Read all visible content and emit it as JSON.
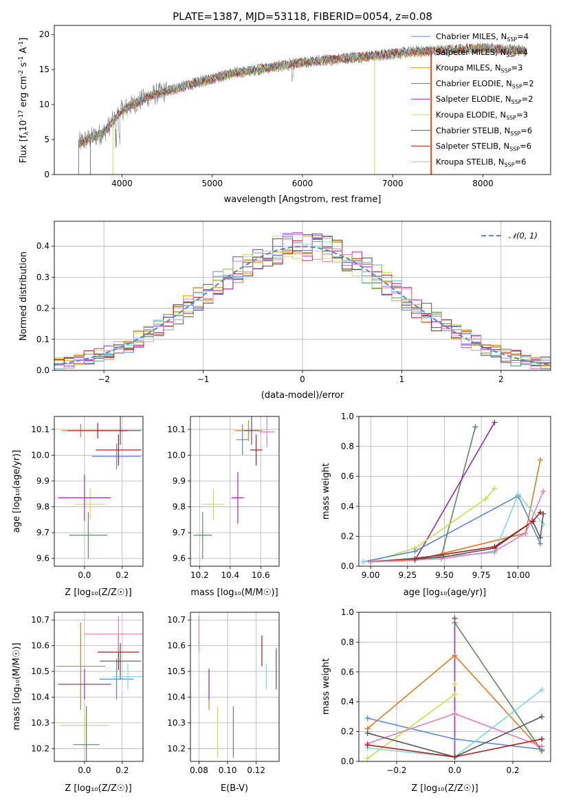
{
  "colors": {
    "chabrier_miles": "#5b86d8",
    "salpeter_miles": "#e07a22",
    "kroupa_miles": "#d4a020",
    "chabrier_elodie": "#5a8a5a",
    "salpeter_elodie": "#9a2ab0",
    "kroupa_elodie": "#c8e048",
    "chabrier_stelib": "#555555",
    "salpeter_stelib": "#b01818",
    "kroupa_stelib": "#7ed8e0",
    "pink": "#e87bb4",
    "normal": "#5b8ad8",
    "grid": "#b0b0b0",
    "spectrum_gray": "#808080"
  },
  "chart_data": [
    {
      "id": "spectrum",
      "type": "line",
      "title": "PLATE=1387, MJD=53118, FIBERID=0054, z=0.08",
      "xlabel": "wavelength [Angstrom, rest frame]",
      "ylabel_main": "Flux [f",
      "ylabel_sub": "λ",
      "ylabel_mid": "10",
      "ylabel_exp": "-17",
      "ylabel_rest": " erg cm",
      "ylabel_exp2": "-2",
      "ylabel_rest2": " s",
      "ylabel_exp3": "-1",
      "ylabel_rest3": " A",
      "ylabel_exp4": "-1",
      "ylabel_end": "]",
      "xlim": [
        3250,
        8750
      ],
      "ylim": [
        0,
        21.3
      ],
      "xticks": [
        "4000",
        "5000",
        "6000",
        "7000",
        "8000"
      ],
      "yticks": [
        "0",
        "5",
        "10",
        "15",
        "20"
      ],
      "xtick_values": [
        4000,
        5000,
        6000,
        7000,
        8000
      ],
      "ytick_values": [
        0,
        5,
        10,
        15,
        20
      ],
      "observed_wavelength_range": [
        3520,
        8480
      ],
      "flux_anchor_wavelengths": [
        3520,
        3800,
        4000,
        4300,
        4800,
        5200,
        5800,
        6200,
        6800,
        7200,
        7600,
        8000,
        8480
      ],
      "flux_anchor_values": [
        4.5,
        6.0,
        9.2,
        11.2,
        13.0,
        14.4,
        15.6,
        16.3,
        17.0,
        17.5,
        17.8,
        18.0,
        17.7
      ],
      "legend": [
        {
          "prefix": "Chabrier MILES, N",
          "sub": "SSP",
          "suffix": "=4",
          "color_key": "chabrier_miles"
        },
        {
          "prefix": "Salpeter MILES, N",
          "sub": "SSP",
          "suffix": "=4",
          "color_key": "salpeter_miles"
        },
        {
          "prefix": "Kroupa MILES, N",
          "sub": "SSP",
          "suffix": "=3",
          "color_key": "kroupa_miles"
        },
        {
          "prefix": "Chabrier ELODIE, N",
          "sub": "SSP",
          "suffix": "=2",
          "color_key": "chabrier_elodie"
        },
        {
          "prefix": "Salpeter ELODIE, N",
          "sub": "SSP",
          "suffix": "=2",
          "color_key": "salpeter_elodie"
        },
        {
          "prefix": "Kroupa ELODIE, N",
          "sub": "SSP",
          "suffix": "=3",
          "color_key": "kroupa_elodie"
        },
        {
          "prefix": "Chabrier STELIB, N",
          "sub": "SSP",
          "suffix": "=6",
          "color_key": "chabrier_stelib"
        },
        {
          "prefix": "Salpeter STELIB, N",
          "sub": "SSP",
          "suffix": "=6",
          "color_key": "salpeter_stelib"
        },
        {
          "prefix": "Kroupa STELIB, N",
          "sub": "SSP",
          "suffix": "=6",
          "color_key": "kroupa_stelib"
        }
      ]
    },
    {
      "id": "residuals",
      "type": "line",
      "xlabel": "(data-model)/error",
      "ylabel": "Normed distribution",
      "xlim": [
        -2.5,
        2.5
      ],
      "ylim": [
        0,
        0.48
      ],
      "xticks": [
        "−2",
        "−1",
        "0",
        "1",
        "2"
      ],
      "yticks": [
        "0.0",
        "0.1",
        "0.2",
        "0.3",
        "0.4"
      ],
      "xtick_values": [
        -2,
        -1,
        0,
        1,
        2
      ],
      "ytick_values": [
        0,
        0.1,
        0.2,
        0.3,
        0.4
      ],
      "grid": true,
      "bin_width": 0.1,
      "legend_label": "𝒩(0, 1)",
      "series_colors": [
        "chabrier_miles",
        "salpeter_miles",
        "kroupa_miles",
        "chabrier_elodie",
        "salpeter_elodie",
        "kroupa_elodie",
        "chabrier_stelib",
        "salpeter_stelib",
        "kroupa_stelib",
        "pink"
      ],
      "histogram_peak": 0.4,
      "histogram_scatter": 0.06
    },
    {
      "id": "age_vs_z",
      "type": "scatter",
      "xlabel": "Z [log₁₀(Z/Z☉)]",
      "ylabel": "age  [log₁₀(age/yr)]",
      "xlim": [
        -0.16,
        0.31
      ],
      "ylim": [
        9.57,
        10.15
      ],
      "xticks": [
        "0.0",
        "0.2"
      ],
      "yticks": [
        "9.6",
        "9.7",
        "9.8",
        "9.9",
        "10.0",
        "10.1"
      ],
      "xtick_values": [
        0.0,
        0.2
      ],
      "ytick_values": [
        9.6,
        9.7,
        9.8,
        9.9,
        10.0,
        10.1
      ],
      "points": [
        {
          "x": 0.17,
          "y": 9.995,
          "xerr": 0.13,
          "yerr": 0.05,
          "color_key": "chabrier_miles"
        },
        {
          "x": -0.02,
          "y": 10.095,
          "xerr": 0.1,
          "yerr": 0.025,
          "color_key": "salpeter_miles"
        },
        {
          "x": 0.03,
          "y": 9.81,
          "xerr": 0.08,
          "yerr": 0.06,
          "color_key": "kroupa_elodie"
        },
        {
          "x": 0.02,
          "y": 9.69,
          "xerr": 0.1,
          "yerr": 0.09,
          "color_key": "chabrier_elodie"
        },
        {
          "x": 0.0,
          "y": 9.835,
          "xerr": 0.14,
          "yerr": 0.09,
          "color_key": "salpeter_elodie"
        },
        {
          "x": 0.19,
          "y": 10.095,
          "xerr": 0.11,
          "yerr": 0.055,
          "color_key": "chabrier_stelib"
        },
        {
          "x": 0.18,
          "y": 10.02,
          "xerr": 0.12,
          "yerr": 0.06,
          "color_key": "salpeter_stelib"
        },
        {
          "x": 0.07,
          "y": 10.095,
          "xerr": 0.16,
          "yerr": 0.03,
          "color_key": "salpeter_stelib"
        }
      ]
    },
    {
      "id": "age_vs_mass",
      "type": "scatter",
      "xlabel": "mass [log₁₀(M/M☉)]",
      "xlim": [
        10.14,
        10.72
      ],
      "ylim": [
        9.57,
        10.15
      ],
      "xticks": [
        "10.2",
        "10.4",
        "10.6"
      ],
      "yticks": [
        "9.6",
        "9.7",
        "9.8",
        "9.9",
        "10.0",
        "10.1"
      ],
      "xtick_values": [
        10.2,
        10.4,
        10.6
      ],
      "ytick_values": [
        9.6,
        9.7,
        9.8,
        9.9,
        10.0,
        10.1
      ],
      "points": [
        {
          "x": 10.48,
          "y": 10.06,
          "xerr": 0.04,
          "yerr": 0.06,
          "color_key": "chabrier_miles"
        },
        {
          "x": 10.52,
          "y": 10.095,
          "xerr": 0.09,
          "yerr": 0.04,
          "color_key": "salpeter_miles"
        },
        {
          "x": 10.29,
          "y": 9.81,
          "xerr": 0.07,
          "yerr": 0.06,
          "color_key": "kroupa_elodie"
        },
        {
          "x": 10.22,
          "y": 9.69,
          "xerr": 0.06,
          "yerr": 0.09,
          "color_key": "chabrier_elodie"
        },
        {
          "x": 10.45,
          "y": 9.835,
          "xerr": 0.04,
          "yerr": 0.1,
          "color_key": "salpeter_elodie"
        },
        {
          "x": 10.54,
          "y": 10.095,
          "xerr": 0.05,
          "yerr": 0.055,
          "color_key": "chabrier_stelib"
        },
        {
          "x": 10.57,
          "y": 10.02,
          "xerr": 0.04,
          "yerr": 0.06,
          "color_key": "salpeter_stelib"
        },
        {
          "x": 10.64,
          "y": 10.09,
          "xerr": 0.05,
          "yerr": 0.06,
          "color_key": "pink"
        }
      ]
    },
    {
      "id": "weight_vs_age",
      "type": "line",
      "xlabel": "age  [log₁₀(age/yr)]",
      "ylabel": "mass weight",
      "xlim": [
        8.92,
        10.22
      ],
      "ylim": [
        0,
        1.0
      ],
      "xticks": [
        "9.00",
        "9.25",
        "9.50",
        "9.75",
        "10.00"
      ],
      "yticks": [
        "0.0",
        "0.2",
        "0.4",
        "0.6",
        "0.8",
        "1.0"
      ],
      "xtick_values": [
        9.0,
        9.25,
        9.5,
        9.75,
        10.0
      ],
      "ytick_values": [
        0,
        0.2,
        0.4,
        0.6,
        0.8,
        1.0
      ],
      "grid": true,
      "series": [
        {
          "color_key": "chabrier_elodie",
          "x": [
            9.0,
            9.48,
            9.71
          ],
          "y": [
            0.03,
            0.07,
            0.93
          ]
        },
        {
          "color_key": "salpeter_elodie",
          "x": [
            9.0,
            9.3,
            9.84
          ],
          "y": [
            0.03,
            0.04,
            0.96
          ]
        },
        {
          "color_key": "kroupa_elodie",
          "x": [
            9.0,
            9.3,
            9.78,
            9.84
          ],
          "y": [
            0.03,
            0.12,
            0.45,
            0.52
          ]
        },
        {
          "color_key": "salpeter_miles",
          "x": [
            9.0,
            9.3,
            10.05,
            10.15
          ],
          "y": [
            0.03,
            0.04,
            0.22,
            0.71
          ]
        },
        {
          "color_key": "chabrier_miles",
          "x": [
            8.95,
            9.3,
            10.0,
            10.15
          ],
          "y": [
            0.03,
            0.1,
            0.47,
            0.15
          ]
        },
        {
          "color_key": "kroupa_stelib",
          "x": [
            8.95,
            9.84,
            10.0,
            10.17
          ],
          "y": [
            0.03,
            0.09,
            0.48,
            0.28
          ]
        },
        {
          "color_key": "chabrier_stelib",
          "x": [
            9.0,
            9.48,
            9.84,
            10.1,
            10.15,
            10.17
          ],
          "y": [
            0.03,
            0.06,
            0.12,
            0.3,
            0.19,
            0.35
          ]
        },
        {
          "color_key": "salpeter_stelib",
          "x": [
            9.0,
            9.3,
            9.84,
            10.1,
            10.15
          ],
          "y": [
            0.03,
            0.05,
            0.13,
            0.3,
            0.36
          ]
        },
        {
          "color_key": "pink",
          "x": [
            9.0,
            9.48,
            9.84,
            10.05,
            10.17
          ],
          "y": [
            0.03,
            0.05,
            0.1,
            0.22,
            0.5
          ]
        }
      ]
    },
    {
      "id": "mass_vs_z",
      "type": "scatter",
      "xlabel": "Z [log₁₀(Z/Z☉)]",
      "ylabel": "mass [log₁₀(M/M☉)]",
      "xlim": [
        -0.16,
        0.31
      ],
      "ylim": [
        10.15,
        10.73
      ],
      "xticks": [
        "0.0",
        "0.2"
      ],
      "yticks": [
        "10.2",
        "10.3",
        "10.4",
        "10.5",
        "10.6",
        "10.7"
      ],
      "xtick_values": [
        0.0,
        0.2
      ],
      "ytick_values": [
        10.2,
        10.3,
        10.4,
        10.5,
        10.6,
        10.7
      ],
      "points": [
        {
          "x": 0.17,
          "y": 10.47,
          "xerr": 0.09,
          "yerr": 0.08,
          "color_key": "chabrier_miles"
        },
        {
          "x": -0.02,
          "y": 10.52,
          "xerr": 0.13,
          "yerr": 0.17,
          "color_key": "salpeter_miles"
        },
        {
          "x": 0.0,
          "y": 10.29,
          "xerr": 0.13,
          "yerr": 0.06,
          "color_key": "kroupa_elodie"
        },
        {
          "x": 0.01,
          "y": 10.215,
          "xerr": 0.07,
          "yerr": 0.15,
          "color_key": "chabrier_elodie"
        },
        {
          "x": 0.0,
          "y": 10.45,
          "xerr": 0.14,
          "yerr": 0.06,
          "color_key": "salpeter_elodie"
        },
        {
          "x": 0.19,
          "y": 10.54,
          "xerr": 0.11,
          "yerr": 0.07,
          "color_key": "chabrier_stelib"
        },
        {
          "x": 0.18,
          "y": 10.575,
          "xerr": 0.11,
          "yerr": 0.07,
          "color_key": "salpeter_stelib"
        },
        {
          "x": 0.23,
          "y": 10.48,
          "xerr": 0.08,
          "yerr": 0.05,
          "color_key": "kroupa_stelib"
        },
        {
          "x": 0.18,
          "y": 10.645,
          "xerr": 0.18,
          "yerr": 0.07,
          "color_key": "pink"
        }
      ]
    },
    {
      "id": "mass_vs_ebv",
      "type": "scatter",
      "xlabel": "E(B-V)",
      "xlim": [
        0.074,
        0.136
      ],
      "ylim": [
        10.15,
        10.73
      ],
      "xticks": [
        "0.08",
        "0.10",
        "0.12"
      ],
      "yticks": [
        "10.2",
        "10.3",
        "10.4",
        "10.5",
        "10.6",
        "10.7"
      ],
      "xtick_values": [
        0.08,
        0.1,
        0.12
      ],
      "ytick_values": [
        10.2,
        10.3,
        10.4,
        10.5,
        10.6,
        10.7
      ],
      "points": [
        {
          "x": 0.08,
          "y": 10.645,
          "xerr": 0.0,
          "yerr": 0.07,
          "color_key": "pink"
        },
        {
          "x": 0.087,
          "y": 10.43,
          "xerr": 0.0,
          "yerr": 0.08,
          "color_key": "salpeter_miles"
        },
        {
          "x": 0.087,
          "y": 10.45,
          "xerr": 0.0,
          "yerr": 0.06,
          "color_key": "salpeter_elodie"
        },
        {
          "x": 0.093,
          "y": 10.265,
          "xerr": 0.0,
          "yerr": 0.1,
          "color_key": "kroupa_elodie"
        },
        {
          "x": 0.104,
          "y": 10.265,
          "xerr": 0.0,
          "yerr": 0.1,
          "color_key": "chabrier_elodie"
        },
        {
          "x": 0.124,
          "y": 10.58,
          "xerr": 0.0,
          "yerr": 0.06,
          "color_key": "salpeter_stelib"
        },
        {
          "x": 0.127,
          "y": 10.48,
          "xerr": 0.0,
          "yerr": 0.05,
          "color_key": "kroupa_stelib"
        },
        {
          "x": 0.134,
          "y": 10.51,
          "xerr": 0.0,
          "yerr": 0.08,
          "color_key": "chabrier_stelib"
        }
      ]
    },
    {
      "id": "weight_vs_z",
      "type": "line",
      "xlabel": "Z [log₁₀(Z/Z☉)]",
      "ylabel": "mass weight",
      "xlim": [
        -0.33,
        0.33
      ],
      "ylim": [
        0,
        1.0
      ],
      "xticks": [
        "−0.2",
        "0.0",
        "0.2"
      ],
      "yticks": [
        "0.0",
        "0.2",
        "0.4",
        "0.6",
        "0.8",
        "1.0"
      ],
      "xtick_values": [
        -0.2,
        0.0,
        0.2
      ],
      "ytick_values": [
        0,
        0.2,
        0.4,
        0.6,
        0.8,
        1.0
      ],
      "grid": true,
      "series": [
        {
          "color_key": "chabrier_miles",
          "x": [
            -0.3,
            0.0,
            0.3
          ],
          "y": [
            0.29,
            0.15,
            0.08
          ]
        },
        {
          "color_key": "salpeter_miles",
          "x": [
            -0.3,
            0.0,
            0.3
          ],
          "y": [
            0.22,
            0.71,
            0.07
          ]
        },
        {
          "color_key": "kroupa_elodie",
          "x": [
            -0.3,
            0.0,
            0.0
          ],
          "y": [
            0.02,
            0.45,
            0.52
          ]
        },
        {
          "color_key": "chabrier_elodie",
          "x": [
            0.0,
            0.3
          ],
          "y": [
            0.93,
            0.07
          ]
        },
        {
          "color_key": "salpeter_elodie",
          "x": [
            0.0,
            0.0
          ],
          "y": [
            0.96,
            0.03
          ]
        },
        {
          "color_key": "pink",
          "x": [
            -0.3,
            0.0,
            0.3
          ],
          "y": [
            0.12,
            0.32,
            0.1
          ]
        },
        {
          "color_key": "kroupa_stelib",
          "x": [
            -0.3,
            0.0,
            0.3
          ],
          "y": [
            0.09,
            0.03,
            0.48
          ]
        },
        {
          "color_key": "chabrier_stelib",
          "x": [
            -0.3,
            0.0,
            0.3
          ],
          "y": [
            0.19,
            0.03,
            0.3
          ]
        },
        {
          "color_key": "salpeter_stelib",
          "x": [
            -0.3,
            0.0,
            0.3
          ],
          "y": [
            0.11,
            0.03,
            0.15
          ]
        }
      ]
    }
  ]
}
